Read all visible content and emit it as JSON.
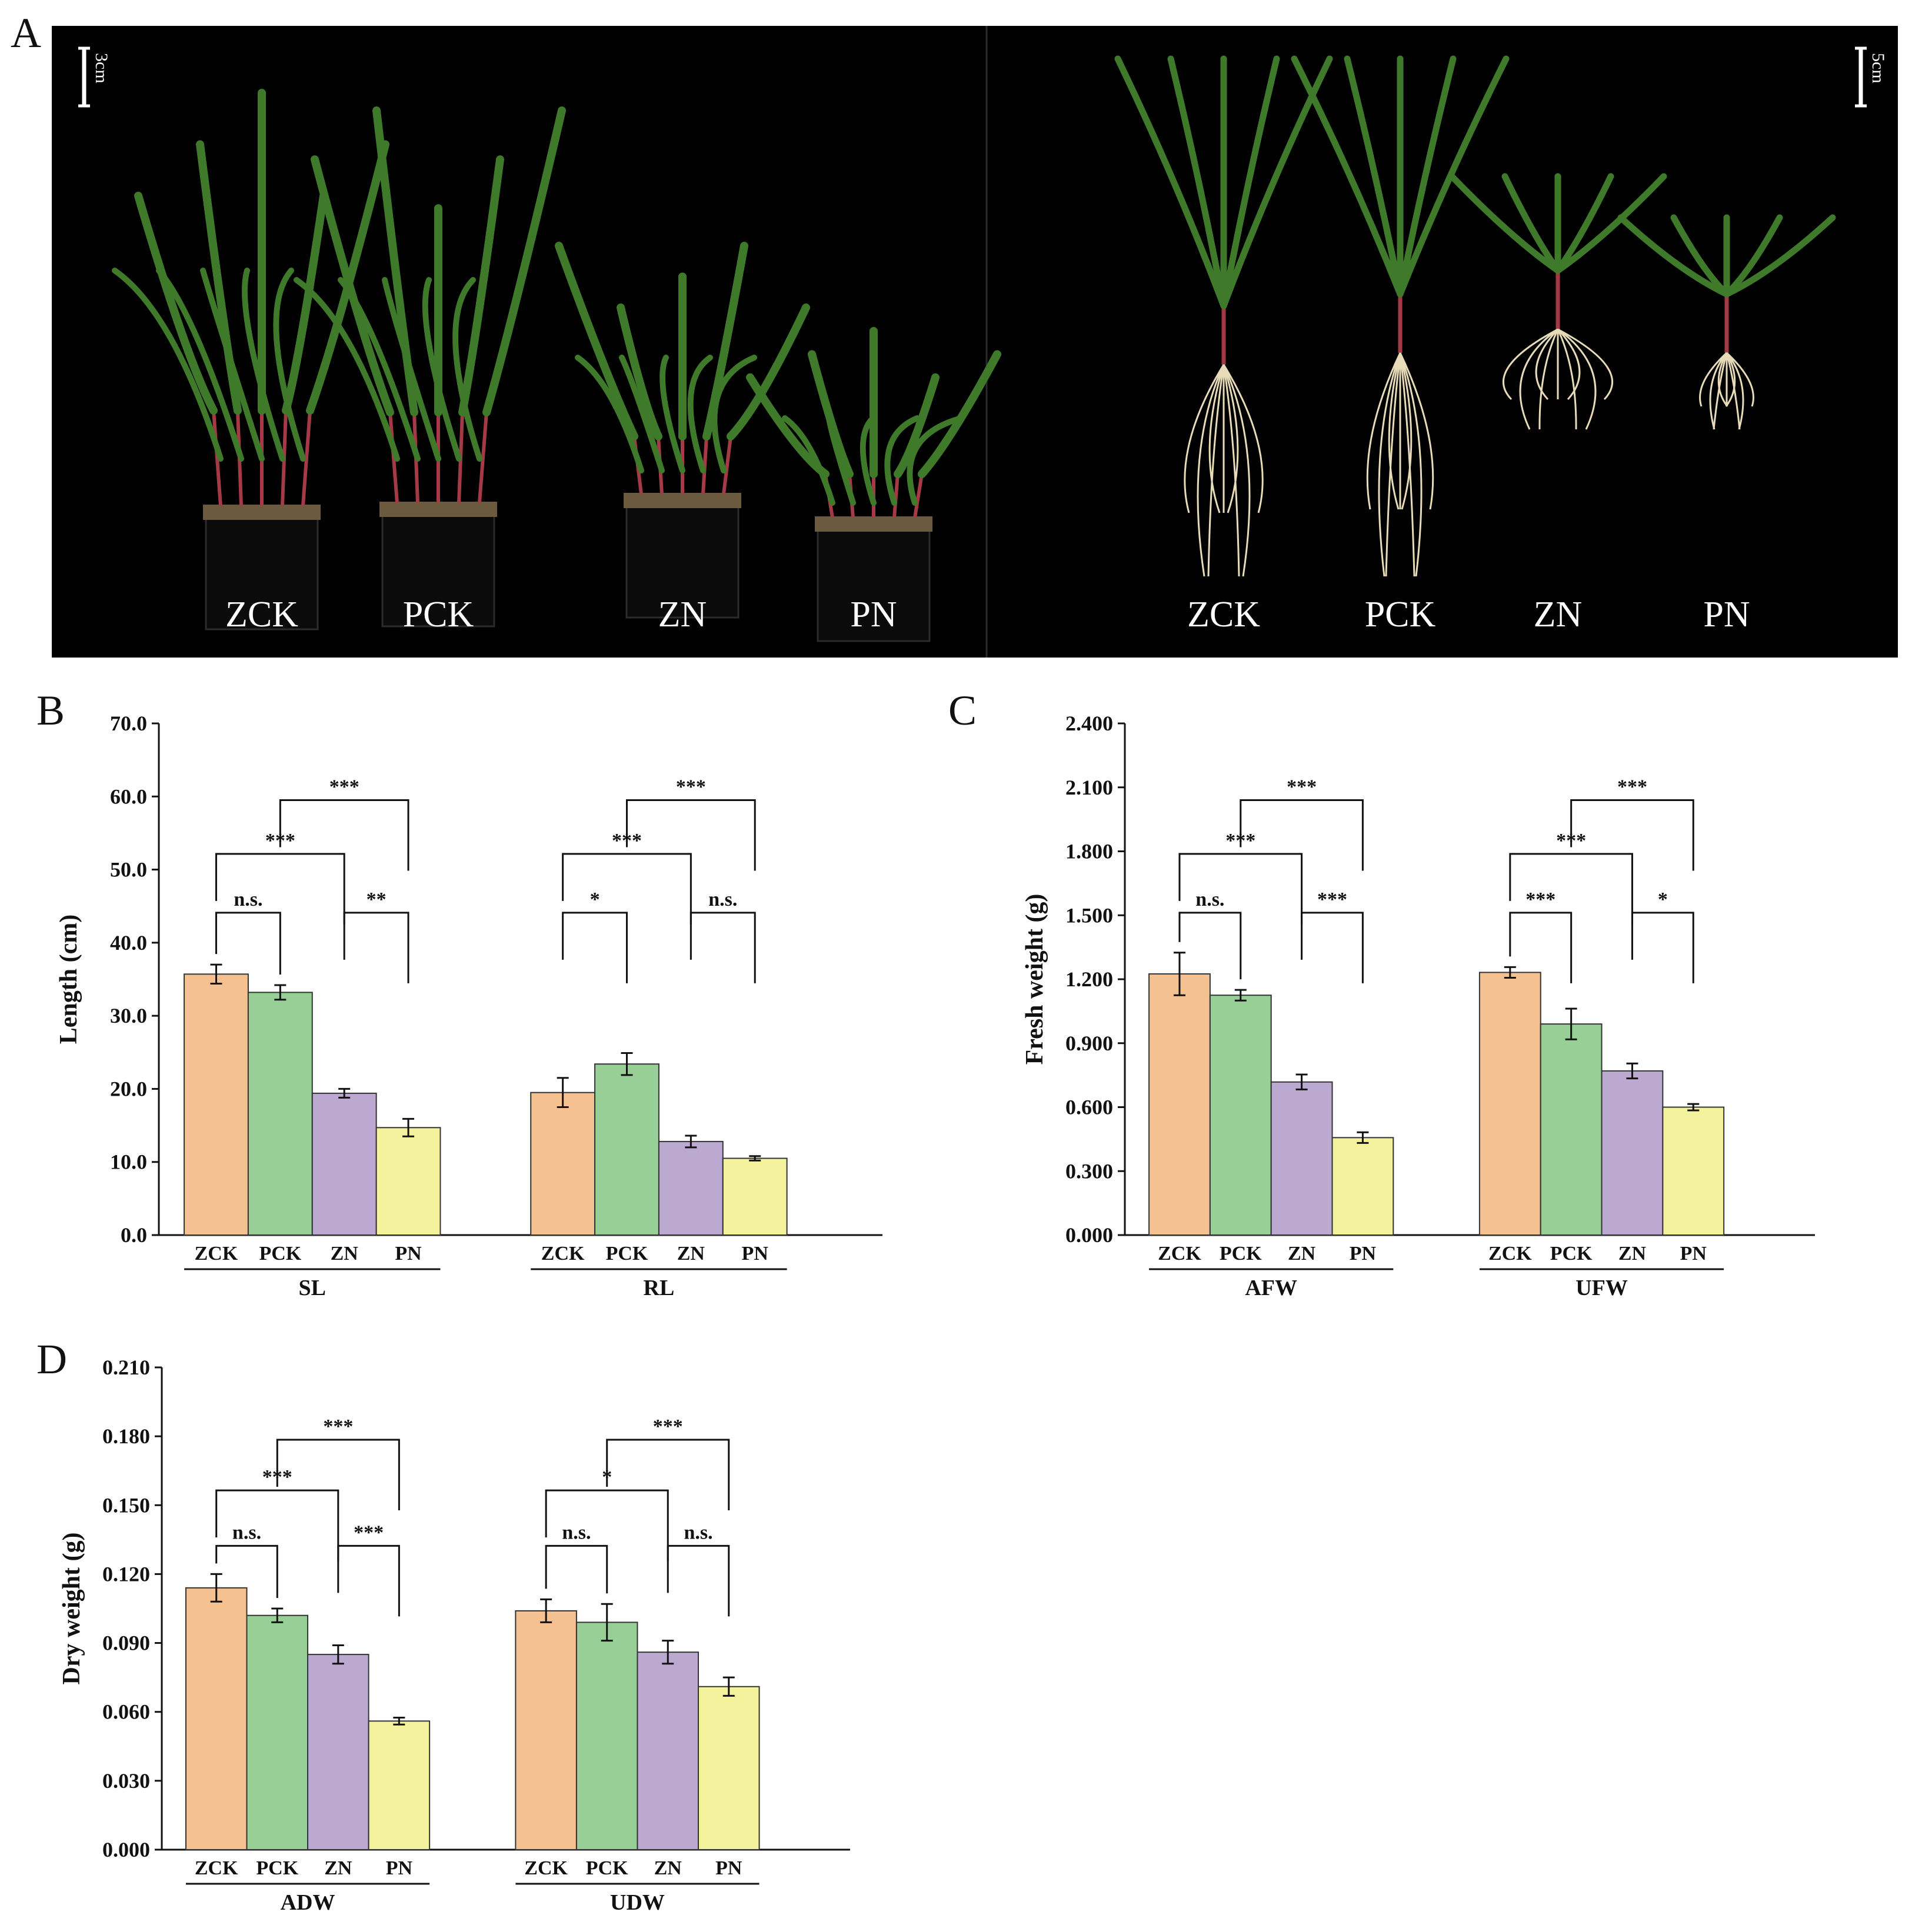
{
  "panels": {
    "a": "A",
    "b": "B",
    "c": "C",
    "d": "D"
  },
  "photo": {
    "left_scale": "3cm",
    "right_scale": "5cm",
    "left_labels": [
      "ZCK",
      "PCK",
      "ZN",
      "PN"
    ],
    "right_labels": [
      "ZCK",
      "PCK",
      "ZN",
      "PN"
    ]
  },
  "colors": {
    "ZCK": "#F5C190",
    "PCK": "#98CF96",
    "ZN": "#BBA9D2",
    "PN": "#F5F29E",
    "photo_bg": "#000000",
    "leaf": "#3f7a2a",
    "stem": "#a33a45",
    "root": "#e8dcb8"
  },
  "chart_data": [
    {
      "panel": "B",
      "type": "bar",
      "ylabel": "Length (cm)",
      "ylim": [
        0,
        70
      ],
      "yticks": [
        "0.0",
        "10.0",
        "20.0",
        "30.0",
        "40.0",
        "50.0",
        "60.0",
        "70.0"
      ],
      "categories": [
        "ZCK",
        "PCK",
        "ZN",
        "PN"
      ],
      "groups": [
        {
          "name": "SL",
          "values": [
            35.7,
            33.2,
            19.4,
            14.7
          ],
          "errors": [
            1.3,
            1.0,
            0.6,
            1.2
          ],
          "sig": [
            {
              "from": 0,
              "to": 1,
              "label": "n.s."
            },
            {
              "from": 2,
              "to": 3,
              "label": "**"
            },
            {
              "from": 0,
              "to": 2,
              "label": "***"
            },
            {
              "from": 1,
              "to": 3,
              "label": "***"
            }
          ]
        },
        {
          "name": "RL",
          "values": [
            19.5,
            23.4,
            12.8,
            10.5
          ],
          "errors": [
            2.0,
            1.5,
            0.8,
            0.3
          ],
          "sig": [
            {
              "from": 0,
              "to": 1,
              "label": "*"
            },
            {
              "from": 2,
              "to": 3,
              "label": "n.s."
            },
            {
              "from": 0,
              "to": 2,
              "label": "***"
            },
            {
              "from": 1,
              "to": 3,
              "label": "***"
            }
          ]
        }
      ]
    },
    {
      "panel": "C",
      "type": "bar",
      "ylabel": "Fresh weight (g)",
      "ylim": [
        0,
        2.4
      ],
      "yticks": [
        "0.000",
        "0.300",
        "0.600",
        "0.900",
        "1.200",
        "1.500",
        "1.800",
        "2.100",
        "2.400"
      ],
      "categories": [
        "ZCK",
        "PCK",
        "ZN",
        "PN"
      ],
      "groups": [
        {
          "name": "AFW",
          "values": [
            1.225,
            1.125,
            0.718,
            0.457
          ],
          "errors": [
            0.1,
            0.025,
            0.035,
            0.025
          ],
          "sig": [
            {
              "from": 0,
              "to": 1,
              "label": "n.s."
            },
            {
              "from": 2,
              "to": 3,
              "label": "***"
            },
            {
              "from": 0,
              "to": 2,
              "label": "***"
            },
            {
              "from": 1,
              "to": 3,
              "label": "***"
            }
          ]
        },
        {
          "name": "UFW",
          "values": [
            1.232,
            0.99,
            0.77,
            0.6
          ],
          "errors": [
            0.025,
            0.072,
            0.035,
            0.015
          ],
          "sig": [
            {
              "from": 0,
              "to": 1,
              "label": "***"
            },
            {
              "from": 2,
              "to": 3,
              "label": "*"
            },
            {
              "from": 0,
              "to": 2,
              "label": "***"
            },
            {
              "from": 1,
              "to": 3,
              "label": "***"
            }
          ]
        }
      ]
    },
    {
      "panel": "D",
      "type": "bar",
      "ylabel": "Dry weight (g)",
      "ylim": [
        0,
        0.21
      ],
      "yticks": [
        "0.000",
        "0.030",
        "0.060",
        "0.090",
        "0.120",
        "0.150",
        "0.180",
        "0.210"
      ],
      "categories": [
        "ZCK",
        "PCK",
        "ZN",
        "PN"
      ],
      "groups": [
        {
          "name": "ADW",
          "values": [
            0.114,
            0.102,
            0.085,
            0.056
          ],
          "errors": [
            0.006,
            0.003,
            0.004,
            0.0015
          ],
          "sig": [
            {
              "from": 0,
              "to": 1,
              "label": "n.s."
            },
            {
              "from": 2,
              "to": 3,
              "label": "***"
            },
            {
              "from": 0,
              "to": 2,
              "label": "***"
            },
            {
              "from": 1,
              "to": 3,
              "label": "***"
            }
          ]
        },
        {
          "name": "UDW",
          "values": [
            0.104,
            0.099,
            0.086,
            0.071
          ],
          "errors": [
            0.005,
            0.008,
            0.005,
            0.004
          ],
          "sig": [
            {
              "from": 0,
              "to": 1,
              "label": "n.s."
            },
            {
              "from": 2,
              "to": 3,
              "label": "n.s."
            },
            {
              "from": 0,
              "to": 2,
              "label": "*"
            },
            {
              "from": 1,
              "to": 3,
              "label": "***"
            }
          ]
        }
      ]
    }
  ]
}
